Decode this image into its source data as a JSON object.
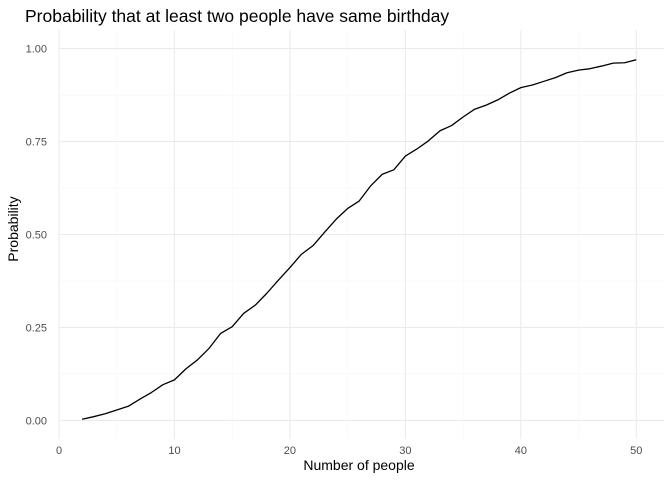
{
  "chart_data": {
    "type": "line",
    "title": "Probability that at least two people have same birthday",
    "xlabel": "Number of people",
    "ylabel": "Probability",
    "xlim": [
      0,
      52.4
    ],
    "ylim": [
      -0.05,
      1.05
    ],
    "x_ticks": [
      0,
      10,
      20,
      30,
      40,
      50
    ],
    "x_tick_labels": [
      "0",
      "10",
      "20",
      "30",
      "40",
      "50"
    ],
    "x_minor_ticks": [
      5,
      15,
      25,
      35,
      45
    ],
    "y_ticks": [
      0,
      0.25,
      0.5,
      0.75,
      1.0
    ],
    "y_tick_labels": [
      "0.00",
      "0.25",
      "0.50",
      "0.75",
      "1.00"
    ],
    "y_minor_ticks": [
      0.125,
      0.375,
      0.625,
      0.875
    ],
    "grid": true,
    "series": [
      {
        "name": "Probability",
        "color": "#000000",
        "x": [
          2,
          3,
          4,
          5,
          6,
          7,
          8,
          9,
          10,
          11,
          12,
          13,
          14,
          15,
          16,
          17,
          18,
          19,
          20,
          21,
          22,
          23,
          24,
          25,
          26,
          27,
          28,
          29,
          30,
          31,
          32,
          33,
          34,
          35,
          36,
          37,
          38,
          39,
          40,
          41,
          42,
          43,
          44,
          45,
          46,
          47,
          48,
          49,
          50
        ],
        "values": [
          0.003,
          0.01,
          0.018,
          0.028,
          0.038,
          0.057,
          0.075,
          0.096,
          0.109,
          0.139,
          0.163,
          0.194,
          0.234,
          0.252,
          0.288,
          0.31,
          0.342,
          0.377,
          0.411,
          0.447,
          0.47,
          0.506,
          0.541,
          0.57,
          0.59,
          0.631,
          0.662,
          0.674,
          0.711,
          0.73,
          0.752,
          0.779,
          0.793,
          0.816,
          0.837,
          0.848,
          0.862,
          0.88,
          0.895,
          0.902,
          0.912,
          0.922,
          0.935,
          0.942,
          0.946,
          0.953,
          0.961,
          0.962,
          0.97
        ]
      }
    ]
  }
}
